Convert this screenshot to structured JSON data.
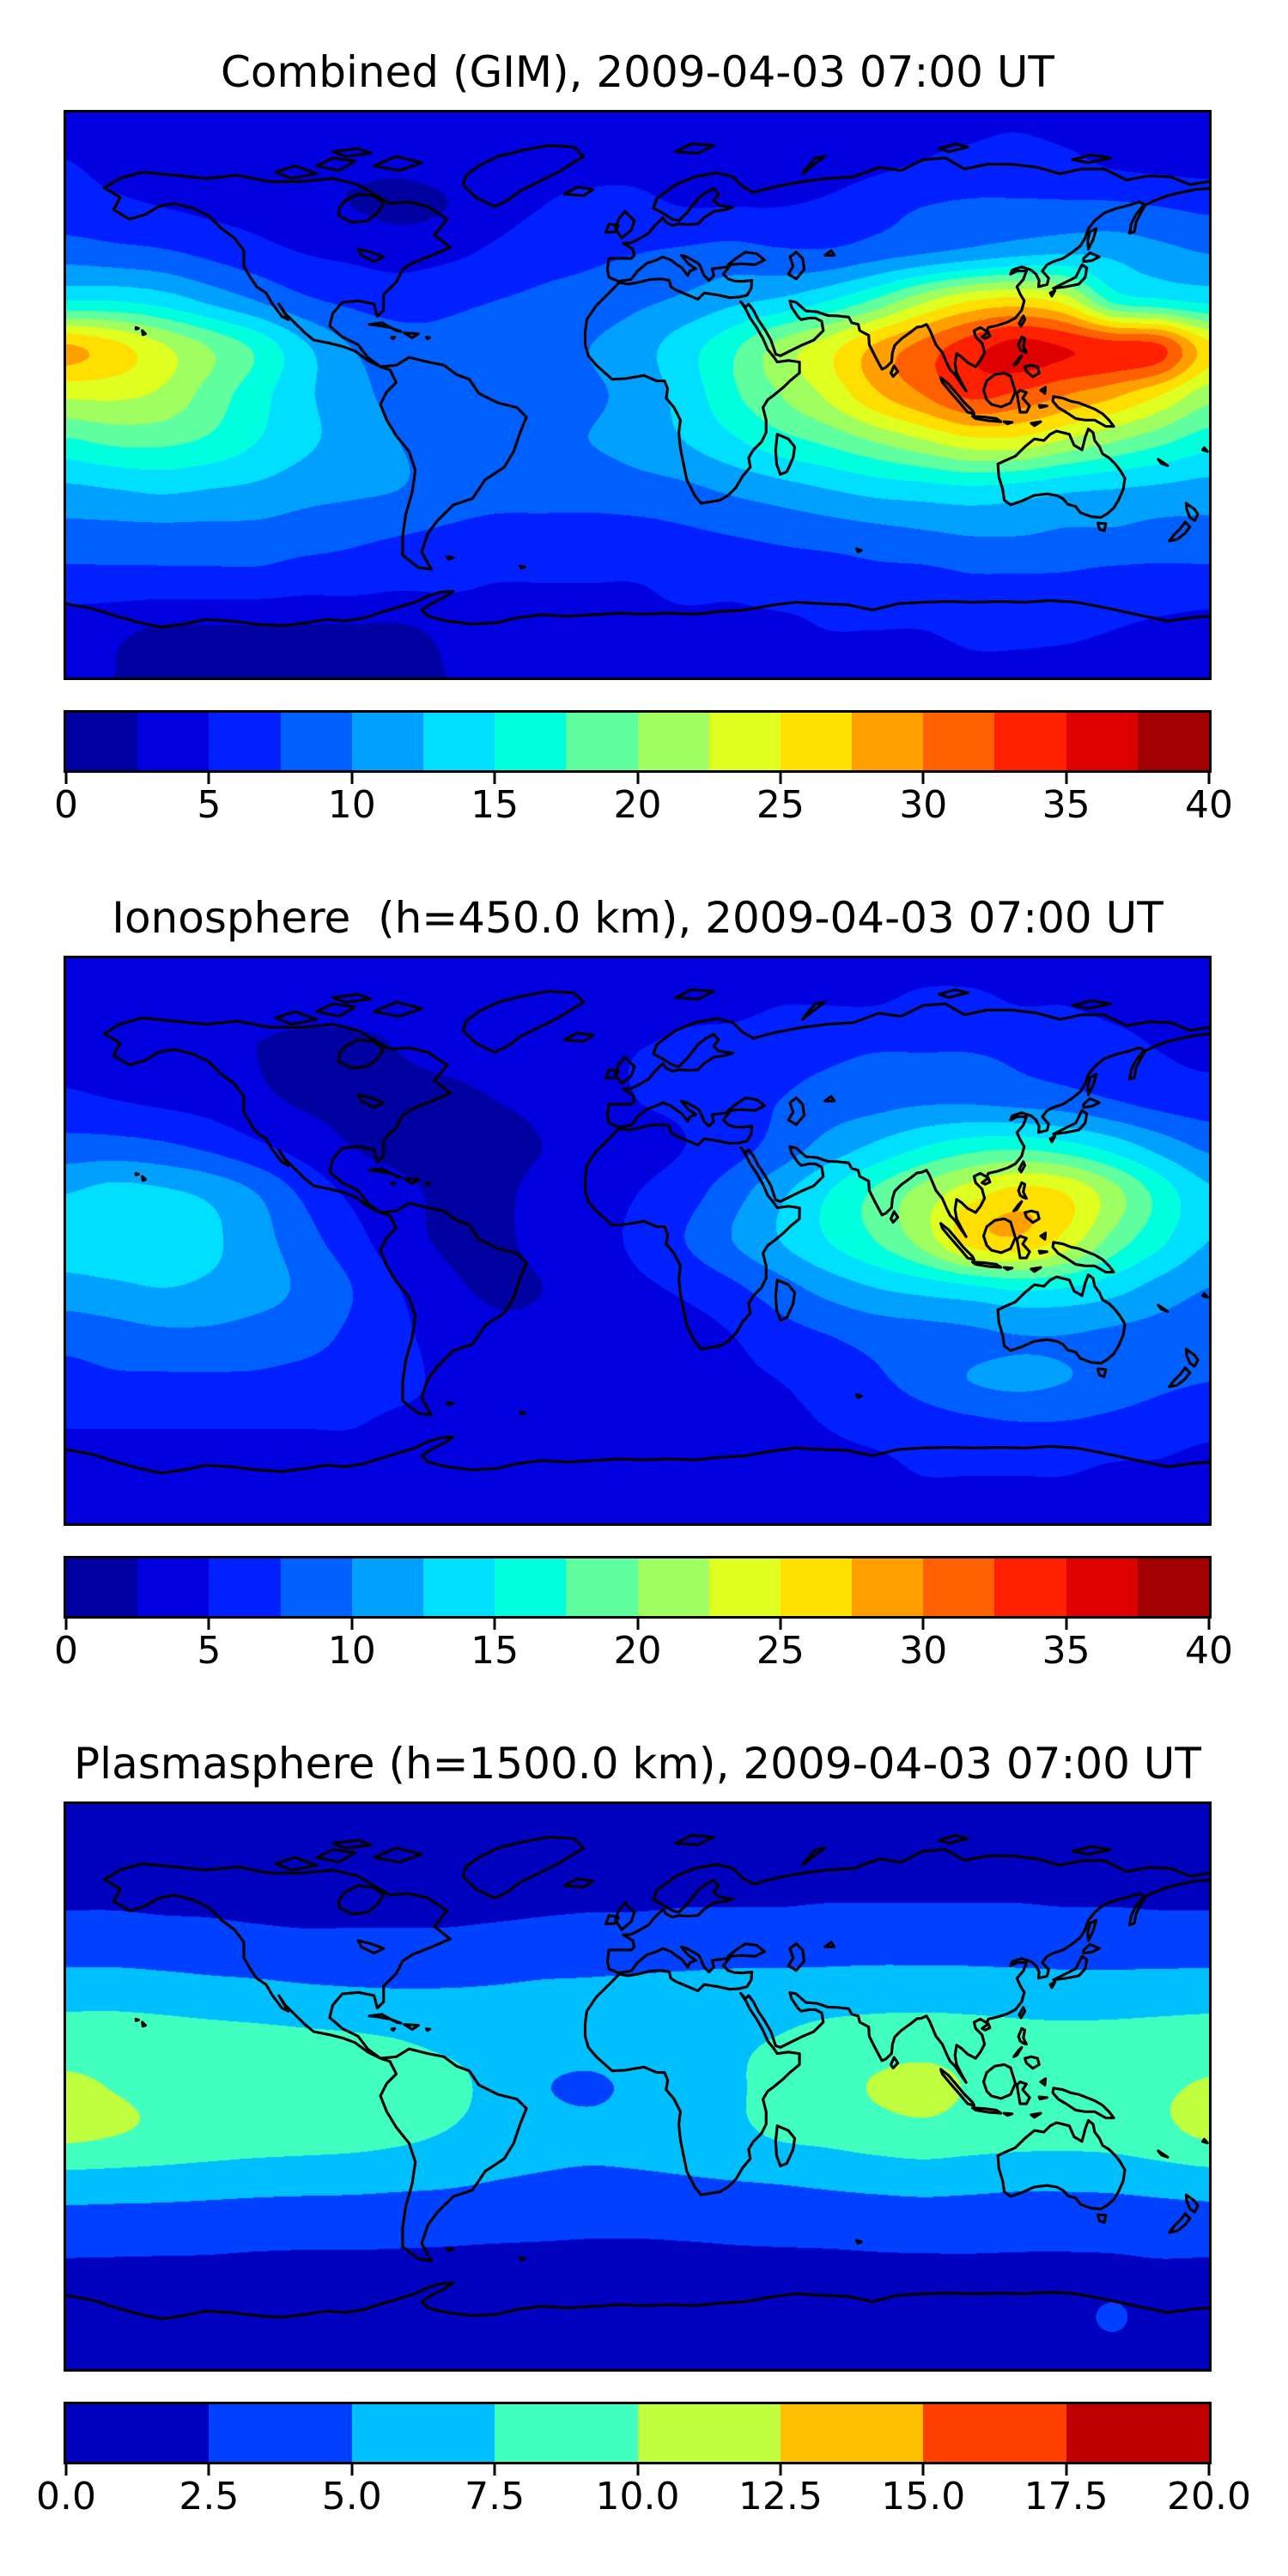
{
  "figure": {
    "background": "#FFFFFF",
    "text_color": "#000000",
    "frame_color": "#000000",
    "coastline_color": "#000000"
  },
  "chart_data": [
    {
      "type": "heatmap",
      "title": "Combined (GIM), 2009-04-03 07:00 UT",
      "colormap": "jet",
      "style": "filled contours, discrete bands over world map (equirectangular, lon -180..180, lat 90..-90)",
      "vmin": 0,
      "vmax": 40,
      "n_bands": 16,
      "band_step": 2.5,
      "colorbar_orientation": "horizontal",
      "colorbar_tick_labels": [
        "0",
        "5",
        "10",
        "15",
        "20",
        "25",
        "30",
        "35",
        "40"
      ],
      "band_colors": [
        "#0000A0",
        "#0000DF",
        "#0020FF",
        "#0060FF",
        "#00A0FF",
        "#00DFFF",
        "#00FFDF",
        "#60FF9F",
        "#9FFF60",
        "#DFFF20",
        "#FFDF00",
        "#FFA000",
        "#FF6000",
        "#FF2000",
        "#DF0000",
        "#A00000"
      ],
      "lon": [
        -180,
        -165,
        -150,
        -135,
        -120,
        -105,
        -90,
        -75,
        -60,
        -45,
        -30,
        -15,
        0,
        15,
        30,
        45,
        60,
        75,
        90,
        105,
        120,
        135,
        150,
        165,
        180
      ],
      "lat": [
        90,
        75,
        60,
        45,
        30,
        15,
        0,
        -15,
        -30,
        -45,
        -60,
        -75,
        -90
      ],
      "values": [
        [
          4.5,
          4.5,
          4.0,
          3.5,
          3.5,
          3.5,
          3.5,
          3.5,
          4.0,
          4.0,
          4.5,
          4.5,
          4.0,
          4.0,
          3.5,
          3.5,
          4.0,
          4.5,
          5.0,
          4.5,
          4.5,
          4.0,
          4.0,
          4.0,
          4.0
        ],
        [
          5.0,
          4.5,
          4.0,
          3.5,
          3.0,
          3.0,
          3.0,
          3.0,
          3.5,
          4.0,
          4.5,
          4.5,
          4.5,
          4.0,
          3.5,
          3.5,
          4.0,
          4.5,
          5.0,
          5.5,
          6.0,
          5.5,
          4.5,
          4.2,
          4.0
        ],
        [
          6.0,
          5.5,
          5.0,
          4.5,
          4.0,
          3.0,
          2.5,
          2.0,
          2.5,
          4.0,
          5.0,
          5.5,
          5.5,
          5.0,
          5.0,
          5.0,
          5.5,
          6.5,
          7.5,
          8.0,
          8.0,
          8.0,
          8.0,
          7.5,
          7.0
        ],
        [
          9.0,
          8.5,
          8.0,
          7.0,
          6.0,
          5.0,
          4.5,
          4.0,
          4.5,
          5.5,
          6.5,
          7.0,
          7.5,
          8.0,
          8.5,
          8.0,
          8.0,
          9.0,
          10.0,
          11.0,
          12.0,
          12.5,
          12.0,
          11.0,
          10.0
        ],
        [
          15.0,
          15.0,
          14.0,
          12.0,
          10.0,
          8.0,
          7.0,
          6.5,
          7.0,
          7.5,
          8.0,
          8.5,
          9.5,
          10.5,
          12.0,
          13.0,
          15.0,
          18.0,
          22.0,
          25.0,
          26.0,
          24.0,
          17.0,
          15.5,
          14.5
        ],
        [
          28.0,
          26.0,
          23.0,
          20.0,
          17.0,
          13.0,
          10.0,
          8.5,
          8.0,
          8.5,
          9.0,
          10.0,
          11.5,
          14.0,
          17.0,
          21.0,
          24.0,
          28.0,
          31.0,
          34.0,
          36.0,
          35.0,
          34.0,
          33.0,
          26.0
        ],
        [
          23.0,
          23.0,
          22.0,
          19.0,
          16.0,
          13.0,
          11.0,
          9.0,
          8.0,
          8.0,
          8.5,
          9.5,
          11.0,
          13.5,
          17.0,
          20.0,
          23.0,
          27.0,
          30.0,
          33.0,
          32.0,
          30.0,
          28.0,
          25.0,
          21.0
        ],
        [
          17.0,
          18.0,
          18.0,
          17.0,
          15.0,
          13.0,
          11.5,
          10.0,
          9.0,
          9.0,
          9.5,
          10.0,
          11.0,
          12.5,
          14.5,
          16.5,
          18.0,
          20.0,
          22.0,
          24.0,
          24.0,
          22.0,
          20.0,
          18.0,
          16.0
        ],
        [
          12.0,
          12.5,
          13.0,
          12.5,
          12.0,
          11.0,
          10.5,
          10.0,
          9.0,
          8.5,
          8.5,
          8.5,
          9.0,
          9.5,
          10.5,
          11.5,
          12.5,
          13.5,
          14.0,
          14.5,
          14.0,
          13.0,
          12.5,
          12.0,
          11.5
        ],
        [
          9.0,
          9.0,
          9.0,
          9.0,
          9.0,
          8.5,
          8.0,
          7.5,
          7.0,
          6.5,
          6.5,
          6.5,
          6.5,
          7.0,
          7.5,
          8.0,
          8.5,
          9.0,
          9.5,
          10.0,
          10.0,
          9.5,
          9.5,
          9.0,
          9.0
        ],
        [
          6.5,
          6.5,
          6.5,
          6.5,
          6.5,
          6.0,
          6.0,
          5.5,
          5.5,
          5.0,
          5.0,
          5.0,
          5.0,
          5.5,
          5.5,
          6.0,
          6.0,
          6.5,
          6.5,
          7.0,
          7.0,
          7.0,
          6.5,
          6.5,
          6.5
        ],
        [
          3.5,
          3.0,
          2.2,
          2.2,
          2.2,
          2.2,
          2.2,
          2.2,
          3.0,
          3.5,
          4.0,
          4.0,
          4.5,
          4.5,
          4.5,
          4.5,
          5.0,
          5.0,
          5.0,
          5.5,
          5.5,
          5.5,
          5.0,
          4.5,
          4.0
        ],
        [
          3.0,
          2.5,
          2.2,
          2.0,
          2.0,
          2.0,
          2.0,
          2.2,
          2.5,
          3.0,
          3.5,
          3.5,
          3.5,
          3.5,
          4.0,
          4.0,
          4.0,
          4.0,
          4.0,
          4.5,
          4.5,
          4.0,
          3.5,
          3.5,
          3.0
        ]
      ]
    },
    {
      "type": "heatmap",
      "title": "Ionosphere  (h=450.0 km), 2009-04-03 07:00 UT",
      "colormap": "jet",
      "style": "filled contours, discrete bands over world map (equirectangular, lon -180..180, lat 90..-90)",
      "vmin": 0,
      "vmax": 40,
      "n_bands": 16,
      "band_step": 2.5,
      "colorbar_orientation": "horizontal",
      "colorbar_tick_labels": [
        "0",
        "5",
        "10",
        "15",
        "20",
        "25",
        "30",
        "35",
        "40"
      ],
      "band_colors": [
        "#0000A0",
        "#0000DF",
        "#0020FF",
        "#0060FF",
        "#00A0FF",
        "#00DFFF",
        "#00FFDF",
        "#60FF9F",
        "#9FFF60",
        "#DFFF20",
        "#FFDF00",
        "#FFA000",
        "#FF6000",
        "#FF2000",
        "#DF0000",
        "#A00000"
      ],
      "lon": [
        -180,
        -165,
        -150,
        -135,
        -120,
        -105,
        -90,
        -75,
        -60,
        -45,
        -30,
        -15,
        0,
        15,
        30,
        45,
        60,
        75,
        90,
        105,
        120,
        135,
        150,
        165,
        180
      ],
      "lat": [
        90,
        75,
        60,
        45,
        30,
        15,
        0,
        -15,
        -30,
        -45,
        -60,
        -75,
        -90
      ],
      "values": [
        [
          3.5,
          3.5,
          3.0,
          3.0,
          3.0,
          3.0,
          3.0,
          3.0,
          3.0,
          3.5,
          3.5,
          4.0,
          4.0,
          4.0,
          4.0,
          4.0,
          4.5,
          4.5,
          4.5,
          4.5,
          4.5,
          4.0,
          4.0,
          3.5,
          3.5
        ],
        [
          3.5,
          3.0,
          3.0,
          2.8,
          2.8,
          2.8,
          2.8,
          2.8,
          3.0,
          3.0,
          3.5,
          4.0,
          4.0,
          4.5,
          4.5,
          5.0,
          5.0,
          5.0,
          5.5,
          5.5,
          5.0,
          5.0,
          4.5,
          4.0,
          3.5
        ],
        [
          4.0,
          3.5,
          3.0,
          2.8,
          2.5,
          2.2,
          2.2,
          2.5,
          3.0,
          3.5,
          4.0,
          4.5,
          5.0,
          5.5,
          6.0,
          6.5,
          7.0,
          7.5,
          7.5,
          7.5,
          7.0,
          6.5,
          6.0,
          5.0,
          4.5
        ],
        [
          5.5,
          5.0,
          4.5,
          4.0,
          3.0,
          2.2,
          2.0,
          2.0,
          2.0,
          2.5,
          3.0,
          4.0,
          5.0,
          5.5,
          6.5,
          7.5,
          8.5,
          9.0,
          9.5,
          9.5,
          9.0,
          8.5,
          7.5,
          6.5,
          6.0
        ],
        [
          8.5,
          8.5,
          8.0,
          7.0,
          5.5,
          4.0,
          2.5,
          2.0,
          2.0,
          2.0,
          2.5,
          3.0,
          4.0,
          5.0,
          6.5,
          8.5,
          11.0,
          13.0,
          15.0,
          16.5,
          17.0,
          16.0,
          14.0,
          11.5,
          9.5
        ],
        [
          12.5,
          13.5,
          13.0,
          12.0,
          10.0,
          7.0,
          4.5,
          3.0,
          2.2,
          2.2,
          3.0,
          4.0,
          5.0,
          6.5,
          9.0,
          12.0,
          15.0,
          18.0,
          21.0,
          24.0,
          26.0,
          25.0,
          21.0,
          16.5,
          13.0
        ],
        [
          14.0,
          14.5,
          14.0,
          13.0,
          11.0,
          8.5,
          6.0,
          3.5,
          2.2,
          2.2,
          3.0,
          4.0,
          5.5,
          7.5,
          10.0,
          12.5,
          15.0,
          17.5,
          21.0,
          26.0,
          27.0,
          24.0,
          19.0,
          15.5,
          12.5
        ],
        [
          11.5,
          12.0,
          12.5,
          12.0,
          11.0,
          9.5,
          7.5,
          5.0,
          3.0,
          2.2,
          2.5,
          3.5,
          4.5,
          5.5,
          7.0,
          9.0,
          11.0,
          12.5,
          13.5,
          14.5,
          15.5,
          15.0,
          13.5,
          11.5,
          10.0
        ],
        [
          8.5,
          9.0,
          9.5,
          9.5,
          9.0,
          8.5,
          7.0,
          5.5,
          4.0,
          3.0,
          3.0,
          3.0,
          3.5,
          4.0,
          5.0,
          6.5,
          7.5,
          8.5,
          9.0,
          9.5,
          10.0,
          10.0,
          9.5,
          9.0,
          8.5
        ],
        [
          6.5,
          7.0,
          7.0,
          7.0,
          7.0,
          6.5,
          6.0,
          5.5,
          4.5,
          3.5,
          3.5,
          3.5,
          3.5,
          4.0,
          4.5,
          5.0,
          6.0,
          7.0,
          8.5,
          10.0,
          10.5,
          10.0,
          9.0,
          8.0,
          7.5
        ],
        [
          5.0,
          5.0,
          5.0,
          5.0,
          5.0,
          5.0,
          5.0,
          4.5,
          4.5,
          4.0,
          4.0,
          4.0,
          4.0,
          4.0,
          4.5,
          4.5,
          5.0,
          5.5,
          6.0,
          6.5,
          7.0,
          7.0,
          6.5,
          6.0,
          5.5
        ],
        [
          4.0,
          4.0,
          4.0,
          4.0,
          4.0,
          4.0,
          4.0,
          4.0,
          4.0,
          4.0,
          4.0,
          4.0,
          4.0,
          4.0,
          4.0,
          4.5,
          4.5,
          4.5,
          5.0,
          5.0,
          5.0,
          5.0,
          4.5,
          4.5,
          4.0
        ],
        [
          3.5,
          3.5,
          3.5,
          3.5,
          3.5,
          3.5,
          3.5,
          3.5,
          3.5,
          3.5,
          3.5,
          3.5,
          3.5,
          3.5,
          4.0,
          4.0,
          4.0,
          4.0,
          4.0,
          4.0,
          4.0,
          4.0,
          3.5,
          3.5,
          3.5
        ]
      ]
    },
    {
      "type": "heatmap",
      "title": "Plasmasphere (h=1500.0 km), 2009-04-03 07:00 UT",
      "colormap": "jet",
      "style": "filled contours, discrete bands over world map (equirectangular, lon -180..180, lat 90..-90)",
      "vmin": 0,
      "vmax": 20,
      "n_bands": 8,
      "band_step": 2.5,
      "colorbar_orientation": "horizontal",
      "colorbar_tick_labels": [
        "0.0",
        "2.5",
        "5.0",
        "7.5",
        "10.0",
        "12.5",
        "15.0",
        "17.5",
        "20.0"
      ],
      "band_colors": [
        "#0000BF",
        "#0040FF",
        "#00BFFF",
        "#40FFBF",
        "#BFFF40",
        "#FFBF00",
        "#FF4000",
        "#BF0000"
      ],
      "lon": [
        -180,
        -165,
        -150,
        -135,
        -120,
        -105,
        -90,
        -75,
        -60,
        -45,
        -30,
        -15,
        0,
        15,
        30,
        45,
        60,
        75,
        90,
        105,
        120,
        135,
        150,
        165,
        180
      ],
      "lat": [
        90,
        75,
        60,
        45,
        30,
        15,
        0,
        -15,
        -30,
        -45,
        -60,
        -75,
        -90
      ],
      "values": [
        [
          1.5,
          1.5,
          1.5,
          1.5,
          1.5,
          1.5,
          1.5,
          1.5,
          1.5,
          1.5,
          1.5,
          1.5,
          1.5,
          1.5,
          1.5,
          1.5,
          1.5,
          1.5,
          1.5,
          1.5,
          1.5,
          1.5,
          1.5,
          1.5,
          1.5
        ],
        [
          1.7,
          1.7,
          1.7,
          1.7,
          1.7,
          1.6,
          1.6,
          1.6,
          1.6,
          1.6,
          1.7,
          1.7,
          1.8,
          1.8,
          1.8,
          1.8,
          1.9,
          1.9,
          1.9,
          1.9,
          1.9,
          1.8,
          1.8,
          1.7,
          1.7
        ],
        [
          2.2,
          2.2,
          2.1,
          2.1,
          2.0,
          2.0,
          2.0,
          2.0,
          2.0,
          2.0,
          2.1,
          2.2,
          2.2,
          2.3,
          2.3,
          2.3,
          2.4,
          2.4,
          2.4,
          2.4,
          2.4,
          2.3,
          2.3,
          2.2,
          2.2
        ],
        [
          3.8,
          3.8,
          3.6,
          3.4,
          3.2,
          3.0,
          3.0,
          3.0,
          3.0,
          3.2,
          3.4,
          3.5,
          3.6,
          3.7,
          3.8,
          3.8,
          3.9,
          4.0,
          4.0,
          4.0,
          3.9,
          3.8,
          3.8,
          3.8,
          3.8
        ],
        [
          6.5,
          6.5,
          6.3,
          6.0,
          5.8,
          5.5,
          5.3,
          5.2,
          5.2,
          5.3,
          5.5,
          5.6,
          5.8,
          6.0,
          6.2,
          6.3,
          6.4,
          6.5,
          6.5,
          6.4,
          6.3,
          6.2,
          6.2,
          6.3,
          6.4
        ],
        [
          8.8,
          8.8,
          8.6,
          8.4,
          8.2,
          8.0,
          7.8,
          7.5,
          7.0,
          6.6,
          6.2,
          6.2,
          6.5,
          6.8,
          7.2,
          7.6,
          8.2,
          8.6,
          8.8,
          8.6,
          8.3,
          8.2,
          8.3,
          8.5,
          8.7
        ],
        [
          10.4,
          9.9,
          9.4,
          9.1,
          8.9,
          8.7,
          8.5,
          8.3,
          8.0,
          6.9,
          5.2,
          4.6,
          5.6,
          6.6,
          7.3,
          8.0,
          9.0,
          10.2,
          10.8,
          9.8,
          9.2,
          9.0,
          9.2,
          9.7,
          10.2
        ],
        [
          10.6,
          10.1,
          9.5,
          9.1,
          8.8,
          8.6,
          8.4,
          8.0,
          7.4,
          6.6,
          6.0,
          5.7,
          6.0,
          6.4,
          7.0,
          7.8,
          8.2,
          8.8,
          9.2,
          8.8,
          8.5,
          8.4,
          8.6,
          9.4,
          10.4
        ],
        [
          6.6,
          6.5,
          6.4,
          6.2,
          6.0,
          5.9,
          5.8,
          5.6,
          5.4,
          5.0,
          4.7,
          4.5,
          4.6,
          4.8,
          5.0,
          5.2,
          5.5,
          5.8,
          6.0,
          5.8,
          5.6,
          5.6,
          5.7,
          6.0,
          6.3
        ],
        [
          3.8,
          3.7,
          3.6,
          3.5,
          3.4,
          3.3,
          3.3,
          3.2,
          3.1,
          3.0,
          2.9,
          2.8,
          2.8,
          2.9,
          3.0,
          3.1,
          3.2,
          3.3,
          3.4,
          3.4,
          3.3,
          3.3,
          3.4,
          3.6,
          3.7
        ],
        [
          2.0,
          2.0,
          2.0,
          2.0,
          1.9,
          1.9,
          1.9,
          1.9,
          1.9,
          1.8,
          1.8,
          1.8,
          1.8,
          1.8,
          1.9,
          1.9,
          1.9,
          2.0,
          2.0,
          2.0,
          2.0,
          2.0,
          2.1,
          2.1,
          2.0
        ],
        [
          1.5,
          1.5,
          1.5,
          1.5,
          1.5,
          1.5,
          1.5,
          1.5,
          1.5,
          1.5,
          1.5,
          1.5,
          1.5,
          1.5,
          1.5,
          1.5,
          1.5,
          1.6,
          1.6,
          1.6,
          1.7,
          1.8,
          2.7,
          1.6,
          1.5
        ],
        [
          1.3,
          1.3,
          1.3,
          1.3,
          1.3,
          1.3,
          1.3,
          1.3,
          1.3,
          1.3,
          1.3,
          1.3,
          1.3,
          1.3,
          1.3,
          1.3,
          1.3,
          1.3,
          1.3,
          1.3,
          1.3,
          1.3,
          1.3,
          1.3,
          1.3
        ]
      ]
    }
  ]
}
